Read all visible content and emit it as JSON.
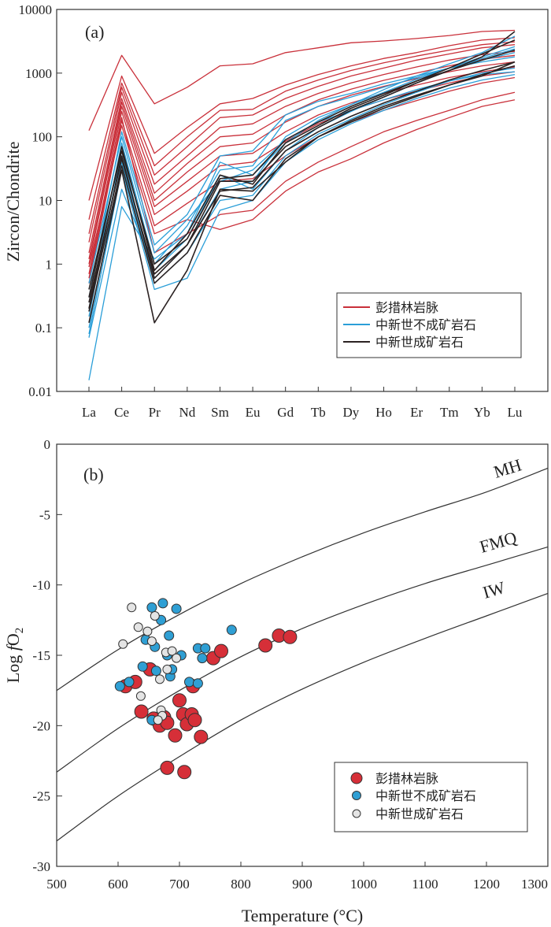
{
  "chart_data": [
    {
      "type": "line",
      "panel_label": "(a)",
      "ylabel": "Zircon/Chondrite",
      "yscale": "log",
      "ylim": [
        0.01,
        10000
      ],
      "y_ticks": [
        "0.01",
        "0.1",
        "1",
        "10",
        "100",
        "1000",
        "10000"
      ],
      "categories": [
        "La",
        "Ce",
        "Pr",
        "Nd",
        "Sm",
        "Eu",
        "Gd",
        "Tb",
        "Dy",
        "Ho",
        "Er",
        "Tm",
        "Yb",
        "Lu"
      ],
      "legend": [
        {
          "name": "彭措林岩脉",
          "color": "#c9303a"
        },
        {
          "name": "中新世不成矿岩石",
          "color": "#2a9ed8"
        },
        {
          "name": "中新世成矿岩石",
          "color": "#2b2222"
        }
      ],
      "series": [
        {
          "group": 0,
          "values": [
            125,
            1900,
            330,
            600,
            1300,
            1400,
            2100,
            2500,
            3000,
            3200,
            3500,
            3900,
            4500,
            4700
          ]
        },
        {
          "group": 0,
          "values": [
            10,
            900,
            55,
            140,
            330,
            400,
            650,
            950,
            1300,
            1700,
            2100,
            2700,
            3300,
            3600
          ]
        },
        {
          "group": 0,
          "values": [
            5,
            700,
            35,
            100,
            260,
            270,
            520,
            780,
            1100,
            1450,
            1850,
            2300,
            2800,
            3100
          ]
        },
        {
          "group": 0,
          "values": [
            3,
            600,
            25,
            70,
            200,
            220,
            400,
            620,
            900,
            1200,
            1600,
            2000,
            2500,
            2800
          ]
        },
        {
          "group": 0,
          "values": [
            2.2,
            500,
            18,
            50,
            140,
            160,
            300,
            480,
            700,
            950,
            1250,
            1600,
            1950,
            2200
          ]
        },
        {
          "group": 0,
          "values": [
            1.5,
            400,
            13,
            38,
            100,
            110,
            220,
            380,
            560,
            770,
            1000,
            1300,
            1650,
            1900
          ]
        },
        {
          "group": 0,
          "values": [
            1.2,
            350,
            10,
            28,
            70,
            80,
            170,
            300,
            450,
            620,
            820,
            1050,
            1300,
            1500
          ]
        },
        {
          "group": 0,
          "values": [
            1,
            300,
            8,
            20,
            50,
            55,
            120,
            220,
            340,
            480,
            650,
            850,
            1050,
            1250
          ]
        },
        {
          "group": 0,
          "values": [
            0.7,
            250,
            6,
            14,
            35,
            40,
            85,
            160,
            260,
            380,
            520,
            700,
            900,
            1050
          ]
        },
        {
          "group": 0,
          "values": [
            0.5,
            180,
            4,
            9,
            20,
            22,
            50,
            100,
            170,
            260,
            370,
            520,
            700,
            850
          ]
        },
        {
          "group": 0,
          "values": [
            0.9,
            150,
            3,
            5,
            3.5,
            5,
            14,
            28,
            45,
            80,
            130,
            200,
            300,
            380
          ]
        },
        {
          "group": 0,
          "values": [
            0.6,
            200,
            1.5,
            3,
            6,
            7,
            20,
            40,
            70,
            120,
            180,
            260,
            380,
            500
          ]
        },
        {
          "group": 1,
          "values": [
            0.015,
            8,
            1.2,
            3,
            40,
            25,
            80,
            180,
            320,
            550,
            900,
            1400,
            2100,
            3800
          ]
        },
        {
          "group": 1,
          "values": [
            0.07,
            15,
            0.8,
            2.5,
            25,
            15,
            60,
            140,
            250,
            420,
            700,
            1100,
            1700,
            2400
          ]
        },
        {
          "group": 1,
          "values": [
            0.1,
            40,
            0.6,
            2,
            15,
            20,
            100,
            200,
            320,
            500,
            800,
            1200,
            1800,
            2600
          ]
        },
        {
          "group": 1,
          "values": [
            0.2,
            80,
            1,
            4,
            30,
            35,
            180,
            300,
            420,
            600,
            850,
            1200,
            1600,
            2100
          ]
        },
        {
          "group": 1,
          "values": [
            0.3,
            120,
            2,
            6,
            50,
            60,
            220,
            360,
            480,
            680,
            900,
            1200,
            1500,
            1800
          ]
        },
        {
          "group": 1,
          "values": [
            0.15,
            60,
            0.5,
            1.5,
            10,
            12,
            50,
            110,
            190,
            320,
            500,
            750,
            1000,
            1200
          ]
        },
        {
          "group": 1,
          "values": [
            0.5,
            100,
            1.5,
            5,
            20,
            30,
            90,
            170,
            260,
            380,
            550,
            750,
            950,
            1050
          ]
        },
        {
          "group": 1,
          "values": [
            0.08,
            30,
            0.4,
            0.6,
            7,
            10,
            40,
            90,
            160,
            260,
            400,
            580,
            780,
            950
          ]
        },
        {
          "group": 2,
          "values": [
            0.12,
            30,
            0.12,
            0.8,
            15,
            14,
            40,
            100,
            180,
            300,
            450,
            650,
            900,
            1500
          ]
        },
        {
          "group": 2,
          "values": [
            0.2,
            50,
            0.6,
            2,
            20,
            20,
            70,
            140,
            260,
            420,
            700,
            1100,
            1800,
            4500
          ]
        },
        {
          "group": 2,
          "values": [
            0.3,
            70,
            0.8,
            3,
            25,
            18,
            80,
            150,
            280,
            450,
            750,
            1200,
            2000,
            3300
          ]
        },
        {
          "group": 2,
          "values": [
            0.4,
            60,
            1,
            2.5,
            22,
            25,
            90,
            170,
            300,
            480,
            750,
            1100,
            1600,
            2300
          ]
        },
        {
          "group": 2,
          "values": [
            0.25,
            45,
            0.7,
            2,
            14,
            16,
            60,
            120,
            210,
            340,
            520,
            780,
            1100,
            1500
          ]
        },
        {
          "group": 2,
          "values": [
            0.18,
            35,
            0.5,
            1.5,
            12,
            10,
            45,
            100,
            170,
            280,
            430,
            650,
            950,
            1300
          ]
        }
      ]
    },
    {
      "type": "scatter",
      "panel_label": "(b)",
      "xlabel": "Temperature (°C)",
      "ylabel_main": "Log ",
      "ylabel_italic": "f",
      "ylabel_tail": "O",
      "ylabel_sub": "2",
      "xlim": [
        500,
        1300
      ],
      "ylim": [
        -30,
        0
      ],
      "x_ticks": [
        "500",
        "600",
        "700",
        "800",
        "900",
        "1000",
        "1100",
        "1200",
        "1300"
      ],
      "y_ticks": [
        "0",
        "-5",
        "-10",
        "-15",
        "-20",
        "-25",
        "-30"
      ],
      "buffers": [
        {
          "name": "MH",
          "points": [
            [
              500,
              -17.5
            ],
            [
              600,
              -14.6
            ],
            [
              700,
              -12.1
            ],
            [
              800,
              -9.9
            ],
            [
              900,
              -8.0
            ],
            [
              1000,
              -6.3
            ],
            [
              1100,
              -4.8
            ],
            [
              1200,
              -3.4
            ],
            [
              1300,
              -1.7
            ]
          ]
        },
        {
          "name": "FMQ",
          "points": [
            [
              500,
              -23.3
            ],
            [
              600,
              -20.2
            ],
            [
              700,
              -17.5
            ],
            [
              800,
              -15.1
            ],
            [
              900,
              -13.1
            ],
            [
              1000,
              -11.4
            ],
            [
              1100,
              -9.9
            ],
            [
              1200,
              -8.6
            ],
            [
              1300,
              -7.3
            ]
          ]
        },
        {
          "name": "IW",
          "points": [
            [
              500,
              -28.2
            ],
            [
              600,
              -25.0
            ],
            [
              700,
              -22.2
            ],
            [
              800,
              -19.6
            ],
            [
              900,
              -17.4
            ],
            [
              1000,
              -15.5
            ],
            [
              1100,
              -13.8
            ],
            [
              1200,
              -12.2
            ],
            [
              1300,
              -10.6
            ]
          ]
        }
      ],
      "legend": [
        {
          "name": "彭措林岩脉",
          "color": "#d62f38"
        },
        {
          "name": "中新世不成矿岩石",
          "color": "#2f9fd4"
        },
        {
          "name": "中新世成矿岩石",
          "color": "#e4e4e4"
        }
      ],
      "series": [
        {
          "name": "彭措林岩脉",
          "color": "#d62f38",
          "points": [
            [
              612,
              -17.2
            ],
            [
              628,
              -16.9
            ],
            [
              638,
              -19.0
            ],
            [
              652,
              -16.0
            ],
            [
              658,
              -19.5
            ],
            [
              668,
              -20.0
            ],
            [
              675,
              -19.4
            ],
            [
              680,
              -19.8
            ],
            [
              693,
              -20.7
            ],
            [
              700,
              -18.2
            ],
            [
              706,
              -19.2
            ],
            [
              712,
              -19.9
            ],
            [
              720,
              -19.2
            ],
            [
              725,
              -19.6
            ],
            [
              722,
              -17.2
            ],
            [
              735,
              -20.8
            ],
            [
              680,
              -23.0
            ],
            [
              708,
              -23.3
            ],
            [
              755,
              -15.2
            ],
            [
              768,
              -14.7
            ],
            [
              840,
              -14.3
            ],
            [
              862,
              -13.6
            ],
            [
              880,
              -13.7
            ]
          ]
        },
        {
          "name": "中新世不成矿岩石",
          "color": "#2f9fd4",
          "points": [
            [
              603,
              -17.2
            ],
            [
              618,
              -16.9
            ],
            [
              640,
              -15.8
            ],
            [
              645,
              -13.9
            ],
            [
              655,
              -11.6
            ],
            [
              660,
              -14.4
            ],
            [
              662,
              -16.1
            ],
            [
              670,
              -12.5
            ],
            [
              673,
              -11.3
            ],
            [
              680,
              -15.0
            ],
            [
              683,
              -13.6
            ],
            [
              685,
              -16.5
            ],
            [
              688,
              -16.0
            ],
            [
              695,
              -11.7
            ],
            [
              703,
              -15.0
            ],
            [
              716,
              -16.9
            ],
            [
              730,
              -17.0
            ],
            [
              730,
              -14.5
            ],
            [
              737,
              -15.2
            ],
            [
              742,
              -14.5
            ],
            [
              785,
              -13.2
            ],
            [
              655,
              -19.6
            ]
          ]
        },
        {
          "name": "中新世成矿岩石",
          "color": "#e4e4e4",
          "points": [
            [
              608,
              -14.2
            ],
            [
              622,
              -11.6
            ],
            [
              633,
              -13.0
            ],
            [
              637,
              -17.9
            ],
            [
              648,
              -13.3
            ],
            [
              655,
              -14.0
            ],
            [
              660,
              -12.2
            ],
            [
              668,
              -16.7
            ],
            [
              670,
              -18.9
            ],
            [
              678,
              -14.8
            ],
            [
              680,
              -16.0
            ],
            [
              688,
              -14.7
            ],
            [
              695,
              -15.2
            ],
            [
              672,
              -19.3
            ],
            [
              665,
              -19.6
            ]
          ]
        }
      ]
    }
  ]
}
